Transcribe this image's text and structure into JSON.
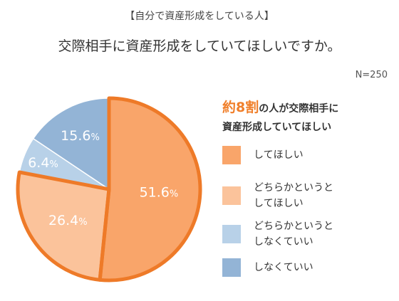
{
  "header": {
    "subtitle": "【自分で資産形成をしている人】",
    "title": "交際相手に資産形成をしていてほしいですか。",
    "sample_size": "N=250"
  },
  "headline": {
    "highlight": "約8割",
    "line1_rest": "の人が交際相手に",
    "line2": "資産形成していてほしい"
  },
  "chart_data": {
    "type": "pie",
    "categories": [
      "してほしい",
      "どちらかというと\nしてほしい",
      "どちらかというと\nしなくていい",
      "しなくていい"
    ],
    "values": [
      51.6,
      26.4,
      6.4,
      15.6
    ],
    "value_labels": [
      "51.6%",
      "26.4%",
      "6.4%",
      "15.6%"
    ],
    "colors": [
      "#f9a56a",
      "#fbc39b",
      "#b8d1e8",
      "#93b4d6"
    ],
    "highlight_color": "#ee7a28",
    "highlighted_slices": [
      "してほしい",
      "どちらかというと\nしてほしい"
    ],
    "start_angle_deg": 0,
    "direction": "clockwise",
    "legend_position": "right"
  }
}
